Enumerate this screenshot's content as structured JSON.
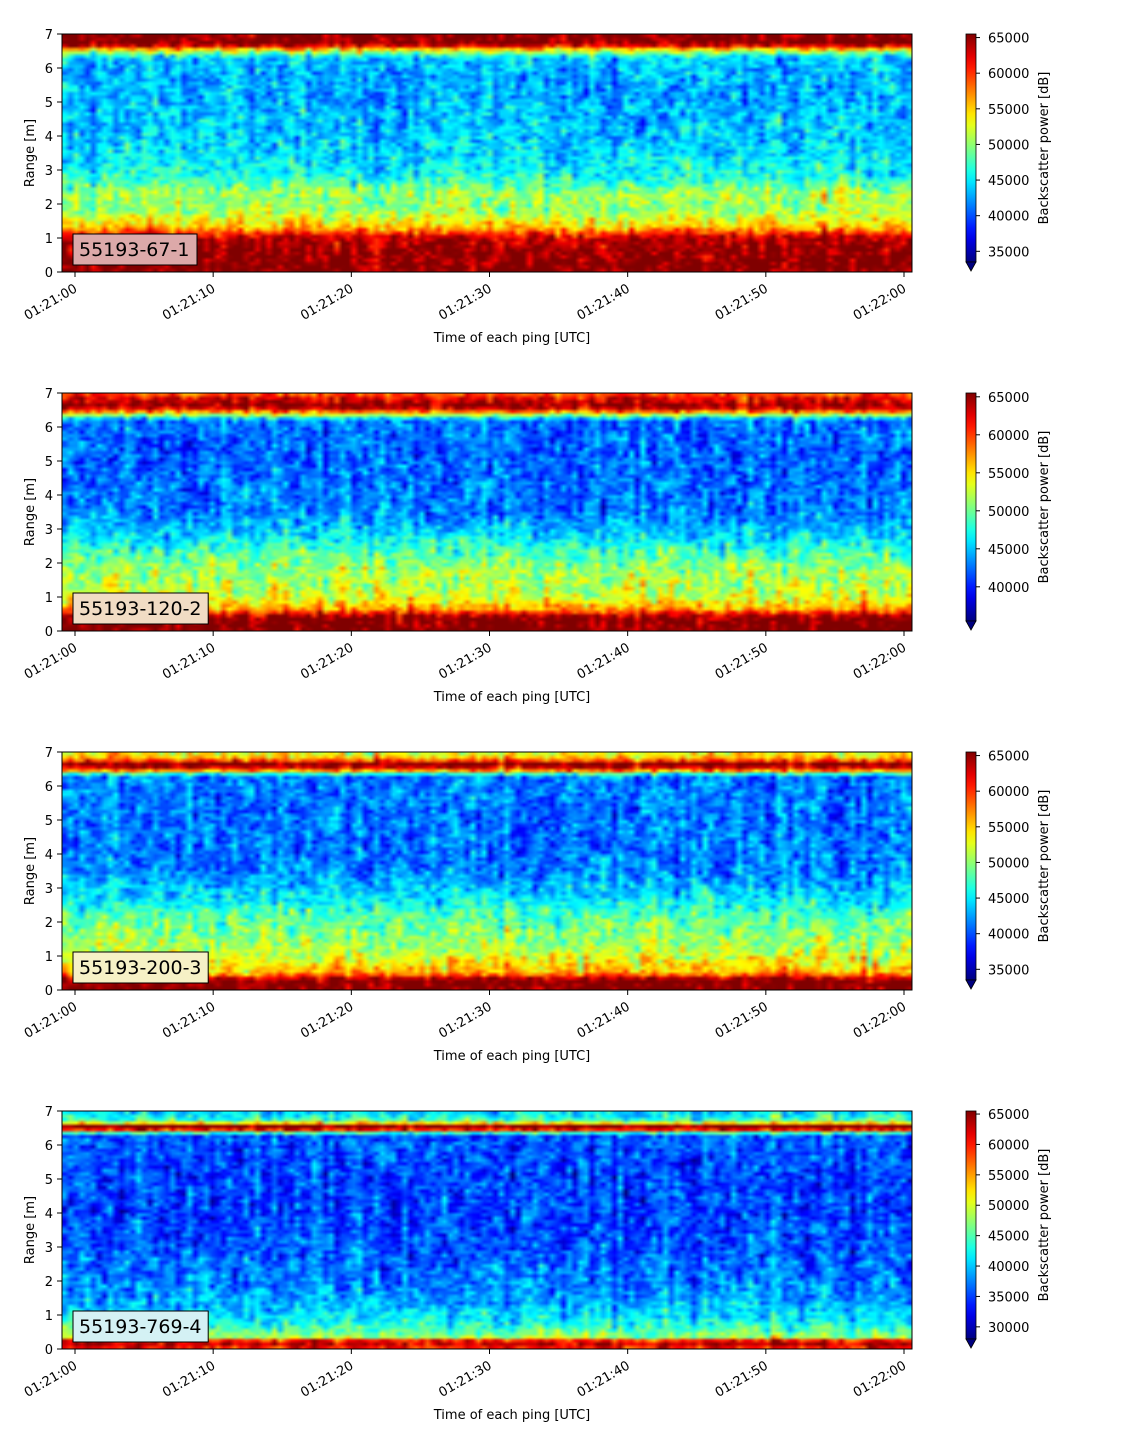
{
  "colormap": "jet",
  "colors": {
    "under": "#00007f",
    "low": "#00008f",
    "high": "#7f0000",
    "label_box_edge": "#000000"
  },
  "common": {
    "xlabel": "Time of each ping [UTC]",
    "ylabel": "Range [m]",
    "colorbar_label": "Backscatter power [dB]",
    "x_ticks": [
      "01:21:00",
      "01:21:10",
      "01:21:20",
      "01:21:30",
      "01:21:40",
      "01:21:50",
      "01:22:00"
    ],
    "y_ticks": [
      "0",
      "1",
      "2",
      "3",
      "4",
      "5",
      "6",
      "7"
    ]
  },
  "chart_data": [
    {
      "type": "heatmap",
      "label": "55193-67-1",
      "label_color": "#dca9a9",
      "xlabel": "Time of each ping [UTC]",
      "ylabel": "Range [m]",
      "x_range": [
        "01:21:00",
        "01:22:00"
      ],
      "ylim": [
        0,
        7
      ],
      "colorbar": {
        "label": "Backscatter power [dB]",
        "vmin": 33500,
        "vmax": 65500,
        "ticks": [
          35000,
          40000,
          45000,
          50000,
          55000,
          60000,
          65000
        ],
        "extend": "min"
      },
      "grid": false,
      "profile": [
        {
          "range_m": 0.15,
          "value": 65500
        },
        {
          "range_m": 0.5,
          "value": 65500
        },
        {
          "range_m": 1.0,
          "value": 64000
        },
        {
          "range_m": 1.3,
          "value": 56000
        },
        {
          "range_m": 1.8,
          "value": 50500
        },
        {
          "range_m": 2.3,
          "value": 51000
        },
        {
          "range_m": 2.8,
          "value": 46500
        },
        {
          "range_m": 3.5,
          "value": 44500
        },
        {
          "range_m": 4.5,
          "value": 43500
        },
        {
          "range_m": 5.5,
          "value": 43000
        },
        {
          "range_m": 6.3,
          "value": 44000
        },
        {
          "range_m": 6.5,
          "value": 52000
        },
        {
          "range_m": 6.7,
          "value": 65500
        },
        {
          "range_m": 7.0,
          "value": 65500
        }
      ]
    },
    {
      "type": "heatmap",
      "label": "55193-120-2",
      "label_color": "#f1dcc4",
      "xlabel": "Time of each ping [UTC]",
      "ylabel": "Range [m]",
      "x_range": [
        "01:21:00",
        "01:22:00"
      ],
      "ylim": [
        0,
        7
      ],
      "colorbar": {
        "label": "Backscatter power [dB]",
        "vmin": 35500,
        "vmax": 65500,
        "ticks": [
          40000,
          45000,
          50000,
          55000,
          60000,
          65000
        ],
        "extend": "min"
      },
      "grid": false,
      "profile": [
        {
          "range_m": 0.1,
          "value": 65500
        },
        {
          "range_m": 0.4,
          "value": 65500
        },
        {
          "range_m": 0.65,
          "value": 57000
        },
        {
          "range_m": 1.0,
          "value": 53000
        },
        {
          "range_m": 2.0,
          "value": 50500
        },
        {
          "range_m": 2.8,
          "value": 46000
        },
        {
          "range_m": 3.5,
          "value": 43000
        },
        {
          "range_m": 5.0,
          "value": 42000
        },
        {
          "range_m": 6.2,
          "value": 42500
        },
        {
          "range_m": 6.45,
          "value": 58000
        },
        {
          "range_m": 6.6,
          "value": 65500
        },
        {
          "range_m": 6.85,
          "value": 62000
        },
        {
          "range_m": 7.0,
          "value": 58000
        }
      ]
    },
    {
      "type": "heatmap",
      "label": "55193-200-3",
      "label_color": "#f6f1c6",
      "xlabel": "Time of each ping [UTC]",
      "ylabel": "Range [m]",
      "x_range": [
        "01:21:00",
        "01:22:00"
      ],
      "ylim": [
        0,
        7
      ],
      "colorbar": {
        "label": "Backscatter power [dB]",
        "vmin": 33500,
        "vmax": 65500,
        "ticks": [
          35000,
          40000,
          45000,
          50000,
          55000,
          60000,
          65000
        ],
        "extend": "min"
      },
      "grid": false,
      "profile": [
        {
          "range_m": 0.1,
          "value": 65500
        },
        {
          "range_m": 0.3,
          "value": 65500
        },
        {
          "range_m": 0.5,
          "value": 56000
        },
        {
          "range_m": 1.2,
          "value": 51000
        },
        {
          "range_m": 2.0,
          "value": 49000
        },
        {
          "range_m": 2.8,
          "value": 44500
        },
        {
          "range_m": 3.5,
          "value": 41500
        },
        {
          "range_m": 5.0,
          "value": 41000
        },
        {
          "range_m": 6.3,
          "value": 41500
        },
        {
          "range_m": 6.5,
          "value": 62000
        },
        {
          "range_m": 6.65,
          "value": 65500
        },
        {
          "range_m": 6.8,
          "value": 56000
        },
        {
          "range_m": 7.0,
          "value": 52000
        }
      ]
    },
    {
      "type": "heatmap",
      "label": "55193-769-4",
      "label_color": "#d4f1f4",
      "xlabel": "Time of each ping [UTC]",
      "ylabel": "Range [m]",
      "x_range": [
        "01:21:00",
        "01:22:00"
      ],
      "ylim": [
        0,
        7
      ],
      "colorbar": {
        "label": "Backscatter power [dB]",
        "vmin": 28000,
        "vmax": 65500,
        "ticks": [
          30000,
          35000,
          40000,
          45000,
          50000,
          55000,
          60000,
          65000
        ],
        "extend": "min"
      },
      "grid": false,
      "profile": [
        {
          "range_m": 0.1,
          "value": 60000
        },
        {
          "range_m": 0.2,
          "value": 65500
        },
        {
          "range_m": 0.35,
          "value": 48000
        },
        {
          "range_m": 0.8,
          "value": 42000
        },
        {
          "range_m": 1.5,
          "value": 38500
        },
        {
          "range_m": 3.0,
          "value": 35500
        },
        {
          "range_m": 5.0,
          "value": 35000
        },
        {
          "range_m": 6.3,
          "value": 36000
        },
        {
          "range_m": 6.45,
          "value": 60000
        },
        {
          "range_m": 6.55,
          "value": 65500
        },
        {
          "range_m": 6.7,
          "value": 45000
        },
        {
          "range_m": 7.0,
          "value": 40000
        }
      ]
    }
  ]
}
